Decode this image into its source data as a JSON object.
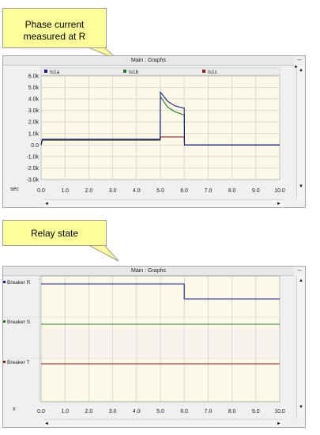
{
  "callouts": [
    {
      "line1": "Phase current",
      "line2": "measured at R"
    },
    {
      "line1": "Relay state"
    }
  ],
  "panels": [
    {
      "title": "Main : Graphs"
    },
    {
      "title": "Main : Graphs"
    }
  ],
  "icons": {
    "collapse": "minus-icon",
    "scroll_up": "triangle-up-icon",
    "scroll_down": "triangle-down-icon",
    "scroll_left": "triangle-left-icon",
    "scroll_right": "triangle-right-icon",
    "legend_marker": "square-marker-icon"
  },
  "symbols": {
    "minus": "–",
    "up": "▲",
    "down": "▼",
    "left": "◄",
    "right": "►",
    "tab_left": "◄",
    "tab_right": "►"
  },
  "colors": {
    "phase_a": "#1a1a8c",
    "phase_b": "#1e7a1e",
    "phase_c": "#8c1a1a",
    "plot_bg": "#fdf9e8",
    "grid": "#c8c8c8"
  },
  "chart_data": [
    {
      "type": "line",
      "title": "",
      "xlabel": "sec",
      "ylabel": "",
      "xlim": [
        0,
        10
      ],
      "ylim": [
        -3.0,
        6.0
      ],
      "x_ticks": [
        "0.0",
        "1.0",
        "2.0",
        "3.0",
        "4.0",
        "5.0",
        "6.0",
        "7.0",
        "8.0",
        "9.0",
        "10.0"
      ],
      "y_ticks": [
        "6.0k",
        "5.0k",
        "4.0k",
        "3.0k",
        "2.0k",
        "1.0k",
        "0.0",
        "-1.0k",
        "-2.0k",
        "-3.0k"
      ],
      "legend_position": "top",
      "series": [
        {
          "name": "Is1a",
          "color": "#1a1a8c",
          "points": [
            [
              0,
              0
            ],
            [
              0.05,
              0.5
            ],
            [
              0.15,
              0.5
            ],
            [
              4.99,
              0.5
            ],
            [
              5.0,
              4.6
            ],
            [
              5.3,
              3.8
            ],
            [
              5.6,
              3.4
            ],
            [
              6.0,
              3.2
            ],
            [
              6.01,
              0
            ],
            [
              10,
              0
            ]
          ]
        },
        {
          "name": "Is1b",
          "color": "#1e7a1e",
          "points": [
            [
              0,
              0
            ],
            [
              0.05,
              0.45
            ],
            [
              0.15,
              0.45
            ],
            [
              4.99,
              0.45
            ],
            [
              5.0,
              4.2
            ],
            [
              5.3,
              3.3
            ],
            [
              5.6,
              2.9
            ],
            [
              6.0,
              2.6
            ],
            [
              6.01,
              0
            ],
            [
              10,
              0
            ]
          ]
        },
        {
          "name": "Is1c",
          "color": "#8c1a1a",
          "points": [
            [
              0,
              0
            ],
            [
              0.05,
              0.42
            ],
            [
              0.15,
              0.42
            ],
            [
              4.99,
              0.42
            ],
            [
              5.0,
              0.7
            ],
            [
              6.0,
              0.7
            ],
            [
              6.01,
              0
            ],
            [
              10,
              0
            ]
          ]
        }
      ]
    },
    {
      "type": "line",
      "title": "",
      "xlabel": "x",
      "ylabel": "",
      "xlim": [
        0,
        10
      ],
      "x_ticks": [
        "0.0",
        "1.0",
        "2.0",
        "3.0",
        "4.0",
        "5.0",
        "6.0",
        "7.0",
        "8.0",
        "9.0",
        "10.0"
      ],
      "series": [
        {
          "name": "Breaker R",
          "color": "#1a1a8c",
          "points": [
            [
              0,
              1
            ],
            [
              6.0,
              1
            ],
            [
              6.0,
              0
            ],
            [
              10,
              0
            ]
          ]
        },
        {
          "name": "Breaker S",
          "color": "#1e7a1e",
          "points": [
            [
              0,
              1
            ],
            [
              10,
              1
            ]
          ]
        },
        {
          "name": "Breaker T",
          "color": "#8c1a1a",
          "points": [
            [
              0,
              1
            ],
            [
              10,
              1
            ]
          ]
        }
      ]
    }
  ]
}
